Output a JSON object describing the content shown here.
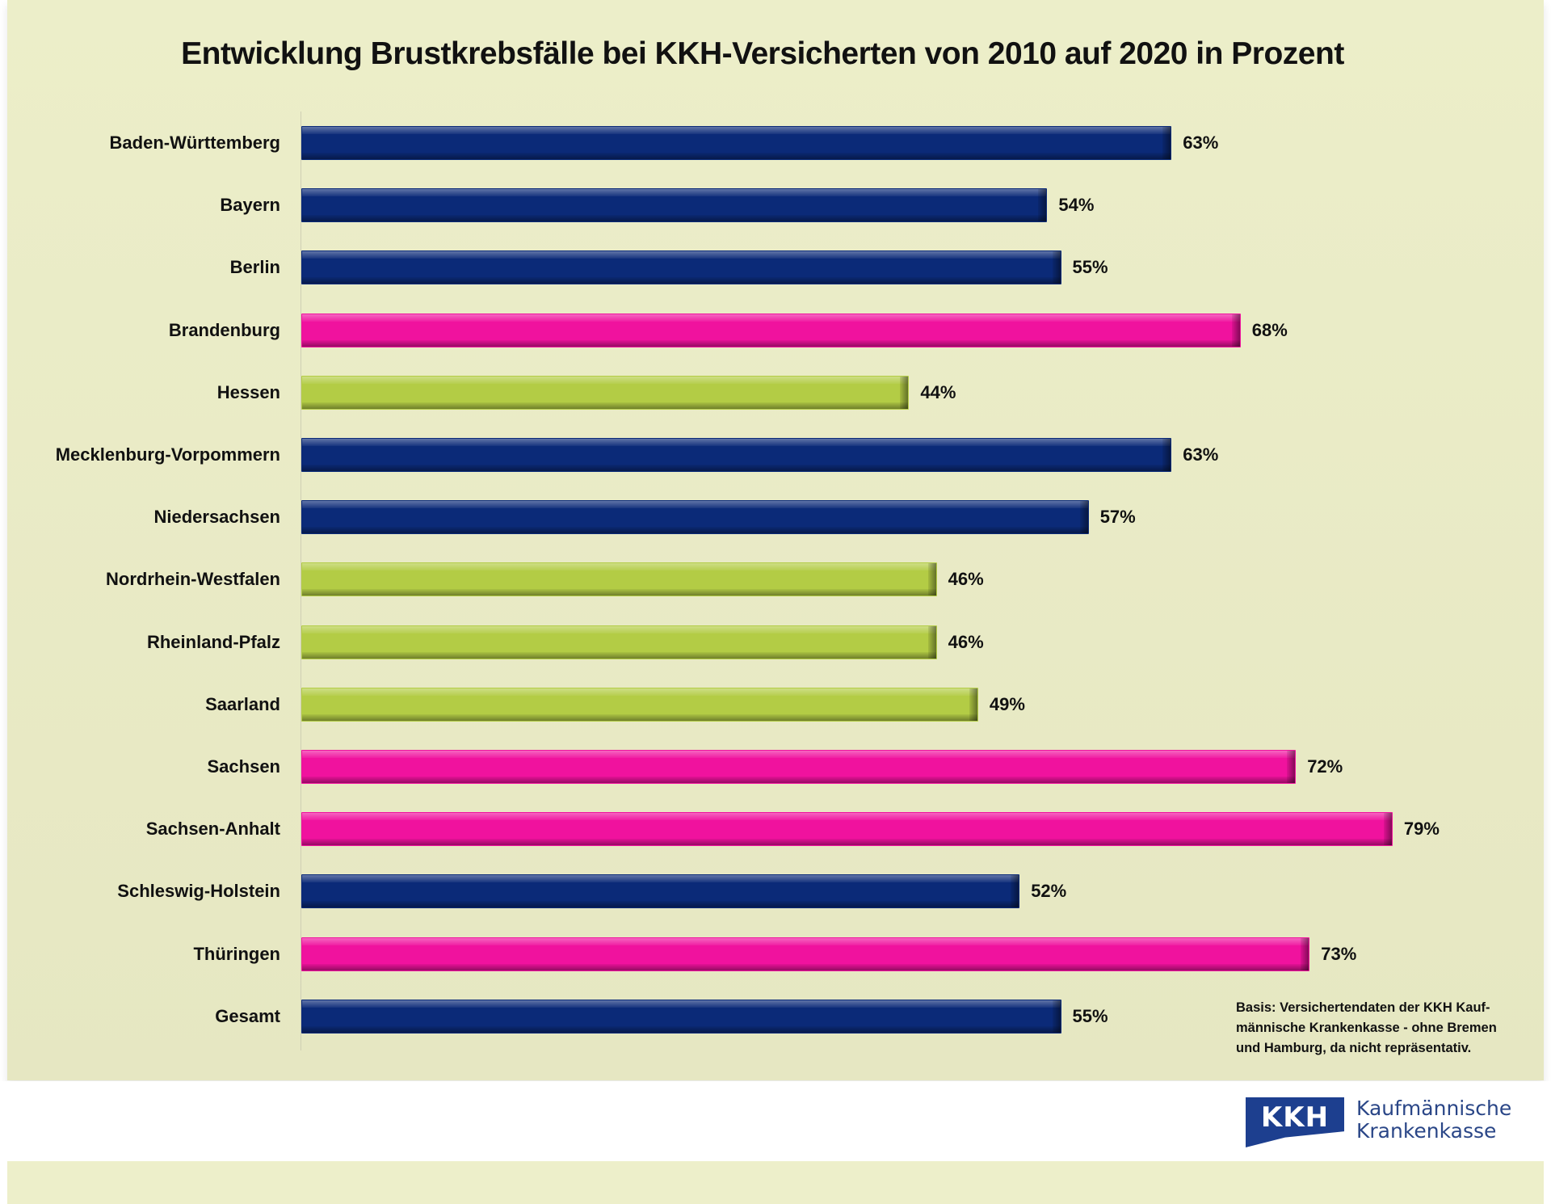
{
  "chart_data": {
    "type": "bar",
    "orientation": "horizontal",
    "title": "Entwicklung Brustkrebsfälle bei KKH-Versicherten von 2010 auf 2020 in Prozent",
    "xlabel": "",
    "ylabel": "",
    "xlim": [
      0,
      90
    ],
    "grid": false,
    "unit": "%",
    "categories": [
      "Baden-Württemberg",
      "Bayern",
      "Berlin",
      "Brandenburg",
      "Hessen",
      "Mecklenburg-Vorpommern",
      "Niedersachsen",
      "Nordrhein-Westfalen",
      "Rheinland-Pfalz",
      "Saarland",
      "Sachsen",
      "Sachsen-Anhalt",
      "Schleswig-Holstein",
      "Thüringen",
      "Gesamt"
    ],
    "values": [
      63,
      54,
      55,
      68,
      44,
      63,
      57,
      46,
      46,
      49,
      72,
      79,
      52,
      73,
      55
    ],
    "data_labels": [
      "63%",
      "54%",
      "55%",
      "68%",
      "44%",
      "63%",
      "57%",
      "46%",
      "46%",
      "49%",
      "72%",
      "79%",
      "52%",
      "73%",
      "55%"
    ],
    "bar_color_groups": [
      "blue",
      "blue",
      "blue",
      "pink",
      "green",
      "blue",
      "blue",
      "green",
      "green",
      "green",
      "pink",
      "pink",
      "blue",
      "pink",
      "blue"
    ],
    "colors": {
      "blue": "#0b2a78",
      "pink": "#f0129e",
      "green": "#b3cc45"
    },
    "annotation": "Basis: Versichertendaten der KKH Kauf-männische Krankenkasse - ohne Bremen und Hamburg, da nicht repräsentativ."
  },
  "footnote": {
    "lines": [
      "Basis: Versichertendaten der KKH Kauf-",
      "männische Krankenkasse - ohne Bremen",
      "und Hamburg, da nicht repräsentativ."
    ]
  },
  "logo": {
    "mark": "KKH",
    "line1": "Kaufmännische",
    "line2": "Krankenkasse",
    "color": "#1d3f8f"
  },
  "background_color": "#e8e9c4"
}
